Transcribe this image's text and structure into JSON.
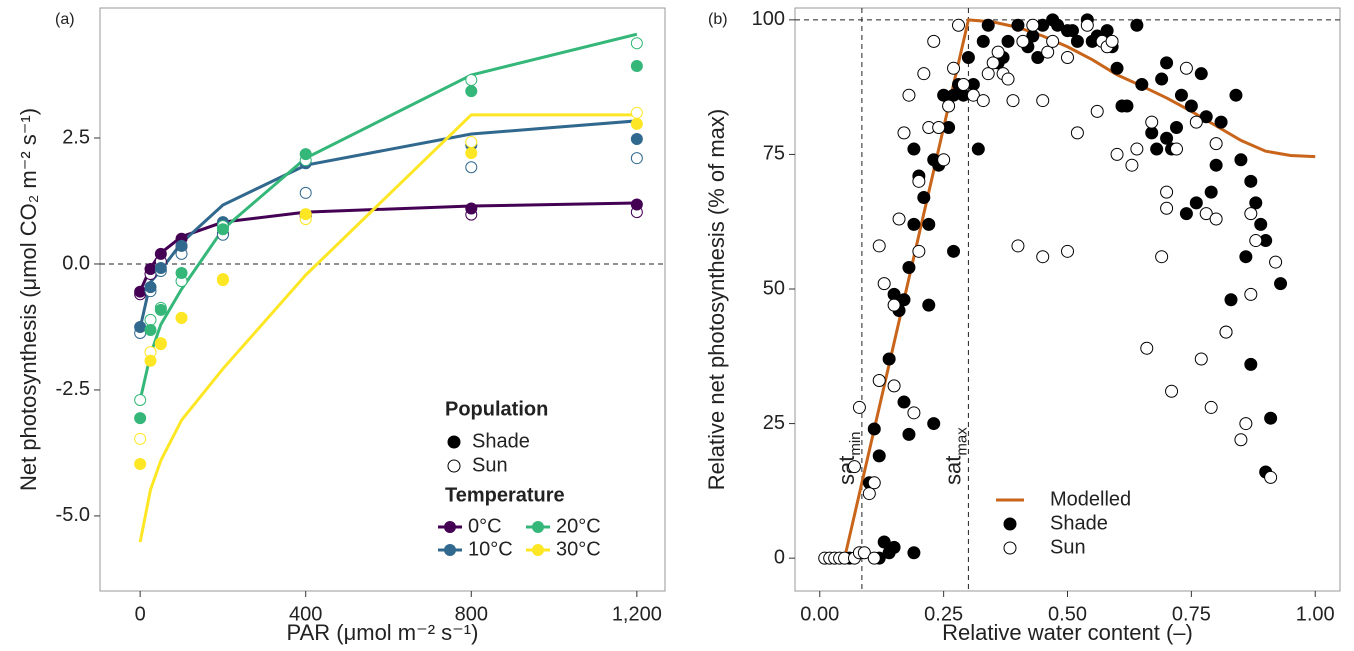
{
  "chart_data": [
    {
      "type": "line",
      "panel": "(a)",
      "x_label": "PAR (μmol m⁻² s⁻¹)",
      "y_label": "Net photosynthesis (μmol CO₂ m⁻² s⁻¹)",
      "x": [
        0,
        25,
        50,
        100,
        200,
        400,
        800,
        1200
      ],
      "xlim": [
        -97,
        1268
      ],
      "xticks": [
        0,
        400,
        800,
        {
          "value": 1200,
          "label": "1,200"
        }
      ],
      "ylim": [
        -6.49,
        5.08
      ],
      "yticks": [
        {
          "value": -5,
          "label": "-5.0"
        },
        {
          "value": -2.5,
          "label": "-2.5"
        },
        {
          "value": 0,
          "label": "0.0"
        },
        2.5
      ],
      "hline": 0,
      "legend_titles": [
        "Population",
        "Temperature"
      ],
      "populations": [
        "Shade",
        "Sun"
      ],
      "series": [
        {
          "name": "0°C",
          "color": "#440154",
          "model": [
            -0.54,
            -0.08,
            0.22,
            0.54,
            0.83,
            1.03,
            1.15,
            1.21
          ],
          "shade": [
            -0.55,
            -0.1,
            0.2,
            0.5,
            0.75,
            0.98,
            1.1,
            1.18
          ],
          "sun": [
            -0.6,
            -0.2,
            0.05,
            0.35,
            0.6,
            0.95,
            0.98,
            1.03
          ]
        },
        {
          "name": "10°C",
          "color": "#31688e",
          "model": [
            -1.27,
            -0.36,
            -0.12,
            0.42,
            1.17,
            1.96,
            2.58,
            2.84
          ],
          "shade": [
            -1.25,
            -0.46,
            -0.08,
            0.36,
            0.83,
            2.0,
            2.36,
            2.48
          ],
          "sun": [
            -1.37,
            -0.54,
            -0.14,
            0.2,
            0.58,
            1.41,
            1.92,
            2.1
          ]
        },
        {
          "name": "20°C",
          "color": "#35b779",
          "model": [
            -2.7,
            -1.8,
            -1.2,
            -0.5,
            0.69,
            2.1,
            3.75,
            4.56
          ],
          "shade": [
            -3.06,
            -1.31,
            -0.91,
            -0.18,
            0.69,
            2.18,
            3.43,
            3.93
          ],
          "sun": [
            -2.7,
            -1.11,
            -0.87,
            -0.34,
            0.75,
            2.06,
            3.65,
            4.38
          ]
        },
        {
          "name": "30°C",
          "color": "#fde725",
          "model": [
            -5.52,
            -4.48,
            -3.9,
            -3.1,
            -2.08,
            -0.22,
            2.96,
            2.96
          ],
          "shade": [
            -3.97,
            -1.92,
            -1.59,
            -1.07,
            -0.3,
            0.99,
            2.2,
            2.78
          ],
          "sun": [
            -3.47,
            -1.75,
            -1.57,
            -1.07,
            -0.32,
            0.89,
            2.42,
            3.0
          ]
        }
      ]
    },
    {
      "type": "scatter",
      "panel": "(b)",
      "x_label": "Relative water content (–)",
      "y_label": "Relative net photosynthesis (% of max)",
      "xlim": [
        -0.05,
        1.05
      ],
      "xticks": [
        {
          "value": 0,
          "label": "0.00"
        },
        {
          "value": 0.25,
          "label": "0.25"
        },
        {
          "value": 0.5,
          "label": "0.50"
        },
        {
          "value": 0.75,
          "label": "0.75"
        },
        {
          "value": 1,
          "label": "1.00"
        }
      ],
      "ylim": [
        -6.1,
        102.2
      ],
      "yticks": [
        0,
        25,
        50,
        75,
        100
      ],
      "hline": 100,
      "vlines": [
        {
          "value": 0.085,
          "label": "sat",
          "sub": "min"
        },
        {
          "value": 0.3,
          "label": "sat",
          "sub": "max"
        }
      ],
      "series": [
        {
          "name": "Modelled",
          "color": "#c8651b",
          "marker": "line",
          "x": [
            0,
            0.05,
            0.3,
            0.35,
            0.4,
            0.45,
            0.5,
            0.55,
            0.6,
            0.65,
            0.7,
            0.75,
            0.8,
            0.85,
            0.9,
            0.95,
            1.0
          ],
          "values": [
            0,
            0,
            100,
            99.6,
            98.6,
            97,
            95,
            92.6,
            89.8,
            87.7,
            85.5,
            83,
            80.3,
            77.6,
            75.6,
            74.8,
            74.6
          ]
        },
        {
          "name": "Shade",
          "color": "#000000",
          "marker": "filled",
          "x": [
            0.06,
            0.12,
            0.13,
            0.14,
            0.15,
            0.19,
            0.1,
            0.11,
            0.12,
            0.14,
            0.15,
            0.16,
            0.17,
            0.17,
            0.18,
            0.18,
            0.19,
            0.19,
            0.2,
            0.21,
            0.22,
            0.22,
            0.23,
            0.23,
            0.24,
            0.25,
            0.26,
            0.27,
            0.27,
            0.28,
            0.29,
            0.3,
            0.31,
            0.32,
            0.33,
            0.34,
            0.36,
            0.37,
            0.38,
            0.4,
            0.42,
            0.43,
            0.44,
            0.45,
            0.47,
            0.48,
            0.5,
            0.51,
            0.52,
            0.54,
            0.55,
            0.56,
            0.58,
            0.59,
            0.6,
            0.61,
            0.62,
            0.64,
            0.65,
            0.67,
            0.68,
            0.69,
            0.7,
            0.7,
            0.71,
            0.72,
            0.73,
            0.74,
            0.75,
            0.76,
            0.77,
            0.78,
            0.79,
            0.8,
            0.81,
            0.82,
            0.83,
            0.84,
            0.85,
            0.86,
            0.87,
            0.87,
            0.88,
            0.89,
            0.9,
            0.9,
            0.91,
            0.93
          ],
          "values": [
            0,
            0,
            3,
            1,
            2,
            1,
            14,
            24,
            19,
            37,
            49,
            46,
            48,
            29,
            23,
            54,
            62,
            76,
            71,
            67,
            47,
            62,
            74,
            25,
            73,
            86,
            80,
            57,
            86,
            88,
            86,
            93,
            88,
            76,
            96,
            99,
            92,
            93,
            96,
            99,
            95,
            97,
            93,
            99,
            100,
            99,
            98,
            98,
            96,
            100,
            96,
            97,
            98,
            95,
            91,
            84,
            84,
            99,
            88,
            79,
            76,
            89,
            92,
            78,
            76,
            80,
            86,
            64,
            84,
            66,
            90,
            82,
            68,
            73,
            81,
            42,
            48,
            86,
            74,
            56,
            36,
            70,
            66,
            62,
            59,
            16,
            26,
            51
          ]
        },
        {
          "name": "Sun",
          "color": "#000000",
          "marker": "open",
          "x": [
            0.01,
            0.02,
            0.03,
            0.04,
            0.05,
            0.07,
            0.08,
            0.07,
            0.08,
            0.09,
            0.1,
            0.11,
            0.11,
            0.12,
            0.12,
            0.13,
            0.15,
            0.15,
            0.16,
            0.17,
            0.18,
            0.19,
            0.2,
            0.2,
            0.21,
            0.22,
            0.23,
            0.24,
            0.25,
            0.26,
            0.27,
            0.28,
            0.29,
            0.31,
            0.33,
            0.34,
            0.35,
            0.36,
            0.37,
            0.38,
            0.39,
            0.4,
            0.41,
            0.43,
            0.45,
            0.45,
            0.46,
            0.47,
            0.5,
            0.5,
            0.52,
            0.54,
            0.56,
            0.57,
            0.58,
            0.59,
            0.6,
            0.63,
            0.64,
            0.66,
            0.67,
            0.69,
            0.7,
            0.7,
            0.71,
            0.72,
            0.74,
            0.76,
            0.77,
            0.78,
            0.79,
            0.8,
            0.8,
            0.82,
            0.85,
            0.86,
            0.87,
            0.87,
            0.88,
            0.91,
            0.92
          ],
          "values": [
            0,
            0,
            0,
            0,
            0,
            0,
            1,
            17,
            28,
            1,
            12,
            0,
            14,
            33,
            58,
            51,
            32,
            47,
            63,
            79,
            86,
            27,
            70,
            57,
            90,
            80,
            96,
            80,
            74,
            84,
            91,
            99,
            88,
            86,
            85,
            90,
            92,
            94,
            90,
            89,
            85,
            58,
            96,
            99,
            56,
            85,
            94,
            96,
            57,
            93,
            79,
            99,
            83,
            96,
            95,
            96,
            75,
            73,
            76,
            39,
            81,
            56,
            65,
            68,
            31,
            76,
            91,
            81,
            37,
            64,
            28,
            63,
            77,
            42,
            22,
            25,
            49,
            64,
            59,
            15,
            55
          ]
        }
      ]
    }
  ]
}
